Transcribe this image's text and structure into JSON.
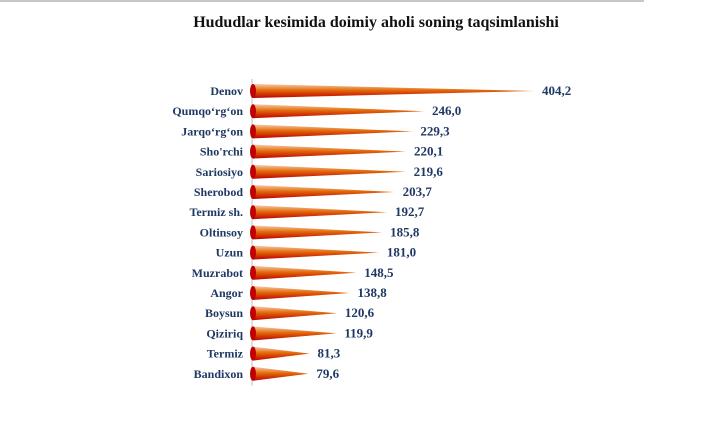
{
  "chart_data": {
    "type": "bar",
    "orientation": "horizontal",
    "title": "Hududlar kesimida doimiy aholi soning taqsimlanishi",
    "categories": [
      "Denov",
      "Qumqo‘rg‘on",
      "Jarqo‘rg‘on",
      "Sho'rchi",
      "Sariosiyo",
      "Sherobod",
      "Termiz sh.",
      "Oltinsoy",
      "Uzun",
      "Muzrabot",
      "Angor",
      "Boysun",
      "Qiziriq",
      "Termiz",
      "Bandixon"
    ],
    "values": [
      404.2,
      246.0,
      229.3,
      220.1,
      219.6,
      203.7,
      192.7,
      185.8,
      181.0,
      148.5,
      138.8,
      120.6,
      119.9,
      81.3,
      79.6
    ],
    "value_labels": [
      "404,2",
      "246,0",
      "229,3",
      "220,1",
      "219,6",
      "203,7",
      "192,7",
      "185,8",
      "181,0",
      "148,5",
      "138,8",
      "120,6",
      "119,9",
      "81,3",
      "79,6"
    ],
    "xlim": [
      0,
      404.2
    ],
    "grid": false,
    "legend": "none",
    "colors": {
      "base": "#c00000",
      "tip": "#f4b183",
      "mid": "#e26b0a"
    }
  }
}
